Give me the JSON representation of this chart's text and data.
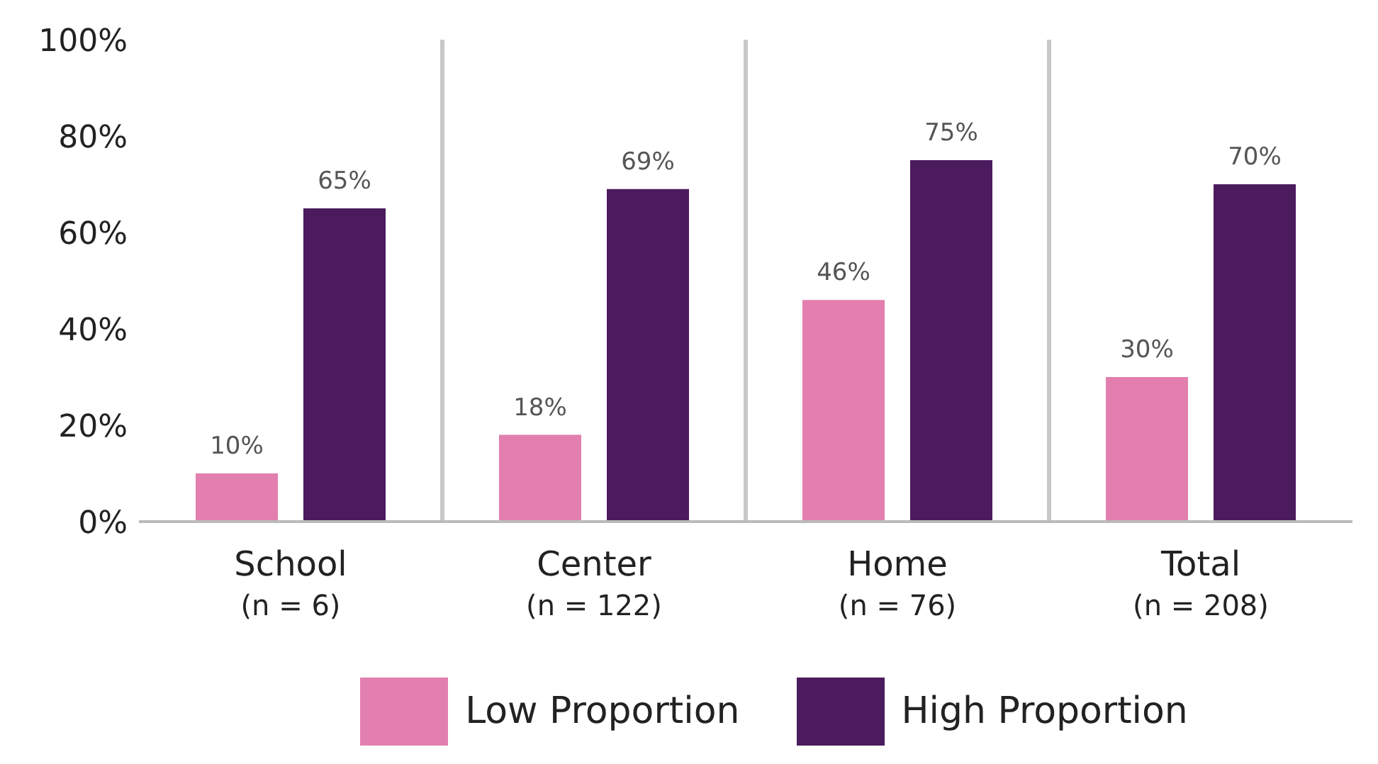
{
  "chart_data": {
    "type": "bar",
    "categories": [
      "School\n(n = 6)",
      "Center\n(n = 122)",
      "Home\n(n = 76)",
      "Total\n(n = 208)"
    ],
    "series": [
      {
        "name": "Low Proportion",
        "color": "#e27fae",
        "values": [
          10,
          18,
          46,
          30
        ],
        "value_labels": [
          "10%",
          "18%",
          "46%",
          "30%"
        ]
      },
      {
        "name": "High Proportion",
        "color": "#4b1b5e",
        "values": [
          65,
          69,
          75,
          70
        ],
        "value_labels": [
          "65%",
          "69%",
          "75%",
          "70%"
        ]
      }
    ],
    "ylim": [
      0,
      100
    ],
    "yticks": [
      {
        "value": 0,
        "label": "0%"
      },
      {
        "value": 20,
        "label": "20%"
      },
      {
        "value": 40,
        "label": "40%"
      },
      {
        "value": 60,
        "label": "60%"
      },
      {
        "value": 80,
        "label": "80%"
      },
      {
        "value": 100,
        "label": "100%"
      }
    ],
    "grid": "x",
    "legend": "bottom"
  }
}
